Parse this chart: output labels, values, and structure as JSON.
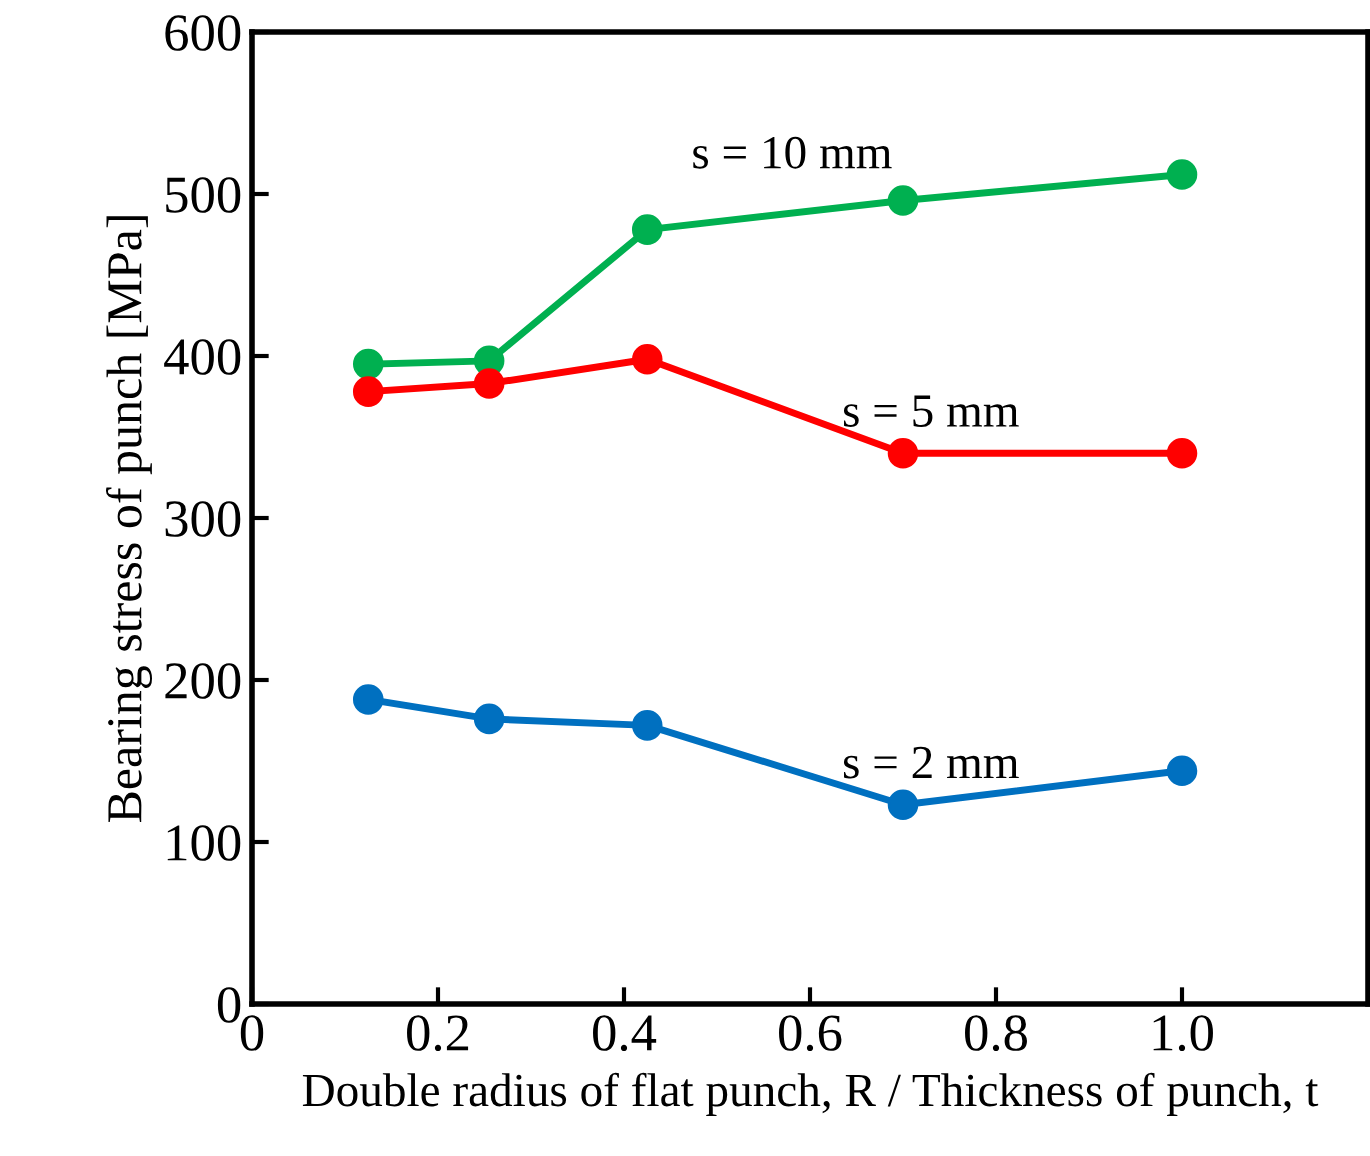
{
  "chart_data": {
    "type": "line",
    "xlabel": "Double radius of flat punch, R / Thickness of punch, t",
    "ylabel": "Bearing stress of punch [MPa]",
    "x": [
      0.125,
      0.255,
      0.425,
      0.7,
      1.0
    ],
    "series": [
      {
        "name": "s = 10 mm",
        "color": "#00b050",
        "values": [
          395,
          397,
          478,
          496,
          512
        ]
      },
      {
        "name": "s = 5 mm",
        "color": "#ff0000",
        "values": [
          378,
          383,
          398,
          340,
          340
        ]
      },
      {
        "name": "s = 2 mm",
        "color": "#0070c0",
        "values": [
          188,
          176,
          172,
          123,
          144
        ]
      }
    ],
    "xlim": [
      0,
      1.2
    ],
    "xticks": [
      0,
      {
        "value": 0.2,
        "label": "0.2"
      },
      {
        "value": 0.4,
        "label": "0.4"
      },
      {
        "value": 0.6,
        "label": "0.6"
      },
      {
        "value": 0.8,
        "label": "0.8"
      },
      {
        "value": 1.0,
        "label": "1.0"
      }
    ],
    "ylim": [
      0,
      600
    ],
    "yticks": [
      0,
      100,
      200,
      300,
      400,
      500,
      600
    ],
    "grid": false,
    "legend": false,
    "marker": "circle",
    "line_style": "solid"
  }
}
